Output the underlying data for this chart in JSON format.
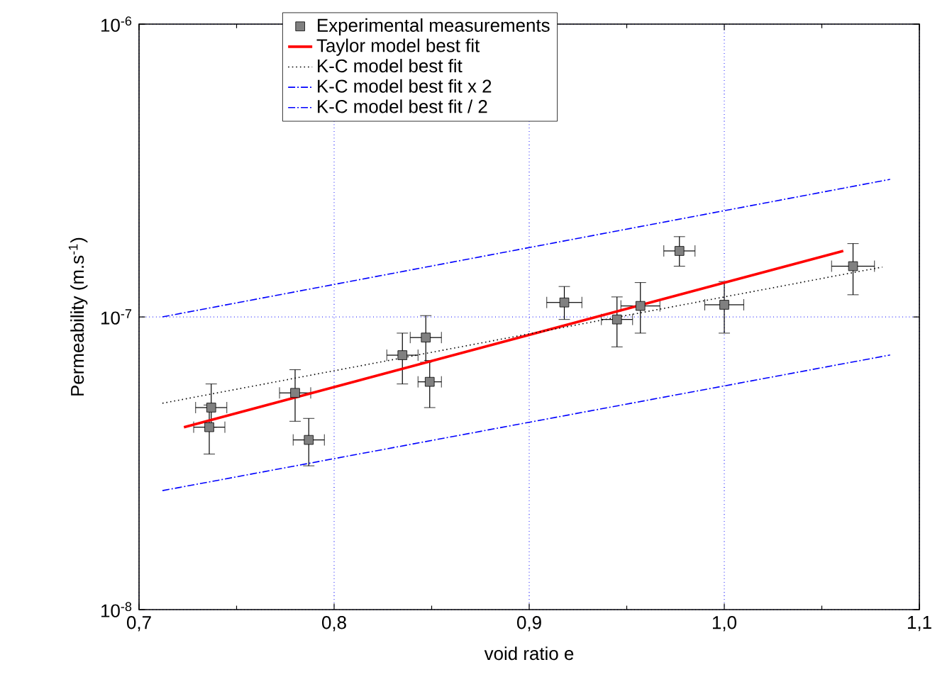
{
  "chart_data": {
    "type": "line",
    "xlabel": "void ratio e",
    "ylabel": "Permeability (m.s$^{-1}$)",
    "xlim": [
      0.7,
      1.1
    ],
    "ylim": [
      1e-08,
      1e-06
    ],
    "log": "y",
    "xticks": [
      {
        "value": 0.7,
        "label": "0,7"
      },
      {
        "value": 0.8,
        "label": "0,8"
      },
      {
        "value": 0.9,
        "label": "0,9"
      },
      {
        "value": 1.0,
        "label": "1,0"
      },
      {
        "value": 1.1,
        "label": "1,1"
      }
    ],
    "yticks": [
      {
        "value": 1e-08,
        "label": "10$^{-8}$"
      },
      {
        "value": 1e-07,
        "label": "10$^{-7}$"
      },
      {
        "value": 1e-06,
        "label": "10$^{-6}$"
      }
    ],
    "grid": true,
    "legend": "top",
    "series": [
      {
        "name": "Experimental measurements",
        "type": "scatter",
        "color": "#808080",
        "marker": "square",
        "x": [
          0.737,
          0.736,
          0.78,
          0.787,
          0.835,
          0.847,
          0.849,
          0.918,
          0.945,
          0.957,
          0.977,
          1.0,
          1.066
        ],
        "values": [
          4.9e-08,
          4.2e-08,
          5.5e-08,
          3.8e-08,
          7.4e-08,
          8.5e-08,
          6e-08,
          1.12e-07,
          9.8e-08,
          1.09e-07,
          1.68e-07,
          1.1e-07,
          1.49e-07
        ],
        "errors": [
          [
            4.2e-08,
            5.9e-08
          ],
          [
            3.4e-08,
            5e-08
          ],
          [
            4.4e-08,
            6.6e-08
          ],
          [
            3.1e-08,
            4.5e-08
          ],
          [
            5.9e-08,
            8.8e-08
          ],
          [
            7e-08,
            1.01e-07
          ],
          [
            4.9e-08,
            7.1e-08
          ],
          [
            9.8e-08,
            1.27e-07
          ],
          [
            7.9e-08,
            1.17e-07
          ],
          [
            8.8e-08,
            1.31e-07
          ],
          [
            1.49e-07,
            1.88e-07
          ],
          [
            8.8e-08,
            1.32e-07
          ],
          [
            1.19e-07,
            1.78e-07
          ]
        ],
        "xerrors": [
          0.008,
          0.008,
          0.008,
          0.008,
          0.008,
          0.008,
          0.006,
          0.009,
          0.008,
          0.01,
          0.008,
          0.01,
          0.011
        ]
      },
      {
        "name": "Taylor model best fit",
        "color": "#ff0000",
        "line_style": "solid",
        "x": [
          0.723,
          1.061
        ],
        "values": [
          4.2e-08,
          1.68e-07
        ]
      },
      {
        "name": "K-C model best fit",
        "color": "#000000",
        "line_style": "dotted",
        "x": [
          0.712,
          1.081
        ],
        "values": [
          5.07e-08,
          1.48e-07
        ]
      },
      {
        "name": "K-C model best fit x 2",
        "color": "#0000ff",
        "line_style": "dashed",
        "x": [
          0.712,
          1.085
        ],
        "values": [
          1e-07,
          2.95e-07
        ]
      },
      {
        "name": "K-C model best fit / 2",
        "color": "#0000ff",
        "line_style": "dashed",
        "x": [
          0.712,
          1.085
        ],
        "values": [
          2.55e-08,
          7.41e-08
        ]
      }
    ]
  }
}
